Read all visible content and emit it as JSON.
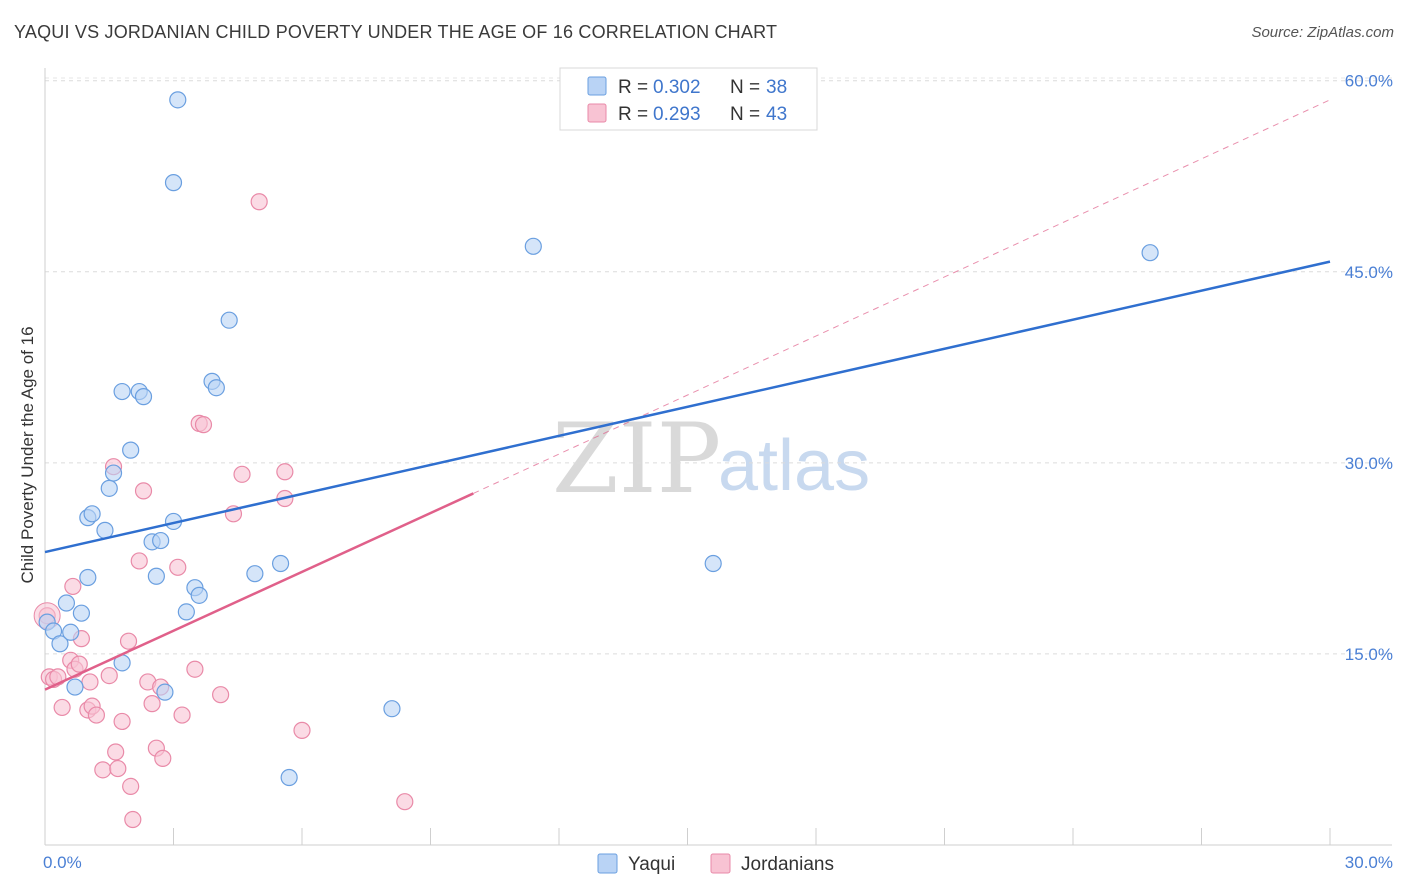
{
  "title": "YAQUI VS JORDANIAN CHILD POVERTY UNDER THE AGE OF 16 CORRELATION CHART",
  "source": "Source: ZipAtlas.com",
  "watermark": {
    "zip": "ZIP",
    "atlas": "atlas"
  },
  "colors": {
    "yaqui_fill": "#b9d3f5",
    "yaqui_stroke": "#6a9fe0",
    "yaqui_line": "#2f6fcf",
    "jord_fill": "#f8c3d3",
    "jord_stroke": "#e98aa8",
    "jord_line": "#e0608a"
  },
  "legend": {
    "rows": [
      {
        "r_label": "R =",
        "r_value": "0.302",
        "n_label": "N =",
        "n_value": "38"
      },
      {
        "r_label": "R =",
        "r_value": "0.293",
        "n_label": "N =",
        "n_value": "43"
      }
    ]
  },
  "chart_data": {
    "type": "scatter",
    "title": "YAQUI VS JORDANIAN CHILD POVERTY UNDER THE AGE OF 16 CORRELATION CHART",
    "xlabel": "",
    "ylabel": "Child Poverty Under the Age of 16",
    "xlim": [
      0,
      30
    ],
    "ylim": [
      0,
      61
    ],
    "x_tick_labels": [
      "0.0%",
      "30.0%"
    ],
    "y_ticks": [
      15,
      30,
      45,
      60
    ],
    "y_tick_labels": [
      "15.0%",
      "30.0%",
      "45.0%",
      "60.0%"
    ],
    "series": [
      {
        "name": "Yaqui",
        "r": 0.302,
        "n": 38,
        "trend": {
          "x": [
            0,
            30
          ],
          "y": [
            23.0,
            45.8
          ],
          "style": "solid"
        },
        "points": [
          [
            0.05,
            17.5
          ],
          [
            0.2,
            16.8
          ],
          [
            0.35,
            15.8
          ],
          [
            0.5,
            19.0
          ],
          [
            0.6,
            16.7
          ],
          [
            0.7,
            12.4
          ],
          [
            0.85,
            18.2
          ],
          [
            1.0,
            21.0
          ],
          [
            1.0,
            25.7
          ],
          [
            1.1,
            26.0
          ],
          [
            1.4,
            24.7
          ],
          [
            1.5,
            28.0
          ],
          [
            1.6,
            29.2
          ],
          [
            1.8,
            35.6
          ],
          [
            1.8,
            14.3
          ],
          [
            2.0,
            31.0
          ],
          [
            2.2,
            35.6
          ],
          [
            2.3,
            35.2
          ],
          [
            2.5,
            23.8
          ],
          [
            2.6,
            21.1
          ],
          [
            2.7,
            23.9
          ],
          [
            2.8,
            12.0
          ],
          [
            3.0,
            52.0
          ],
          [
            3.0,
            25.4
          ],
          [
            3.1,
            58.5
          ],
          [
            3.3,
            18.3
          ],
          [
            3.5,
            20.2
          ],
          [
            3.6,
            19.6
          ],
          [
            3.9,
            36.4
          ],
          [
            4.0,
            35.9
          ],
          [
            4.3,
            41.2
          ],
          [
            4.9,
            21.3
          ],
          [
            5.5,
            22.1
          ],
          [
            5.7,
            5.3
          ],
          [
            8.1,
            10.7
          ],
          [
            11.4,
            47.0
          ],
          [
            15.6,
            22.1
          ],
          [
            25.8,
            46.5
          ]
        ]
      },
      {
        "name": "Jordanians",
        "r": 0.293,
        "n": 43,
        "trend": {
          "x": [
            0,
            10
          ],
          "y": [
            12.2,
            27.6
          ],
          "style": "solid",
          "extended": {
            "x": [
              10,
              30
            ],
            "y": [
              27.6,
              58.5
            ],
            "style": "dashed"
          }
        },
        "points": [
          [
            0.05,
            18.0
          ],
          [
            0.1,
            13.2
          ],
          [
            0.2,
            13.0
          ],
          [
            0.3,
            13.2
          ],
          [
            0.4,
            10.8
          ],
          [
            0.6,
            14.5
          ],
          [
            0.65,
            20.3
          ],
          [
            0.7,
            13.8
          ],
          [
            0.8,
            14.2
          ],
          [
            0.85,
            16.2
          ],
          [
            1.0,
            10.6
          ],
          [
            1.05,
            12.8
          ],
          [
            1.1,
            10.9
          ],
          [
            1.2,
            10.2
          ],
          [
            1.35,
            5.9
          ],
          [
            1.5,
            13.3
          ],
          [
            1.6,
            29.7
          ],
          [
            1.65,
            7.3
          ],
          [
            1.7,
            6.0
          ],
          [
            1.8,
            9.7
          ],
          [
            1.95,
            16.0
          ],
          [
            2.0,
            4.6
          ],
          [
            2.05,
            2.0
          ],
          [
            2.2,
            22.3
          ],
          [
            2.3,
            27.8
          ],
          [
            2.4,
            12.8
          ],
          [
            2.5,
            11.1
          ],
          [
            2.6,
            7.6
          ],
          [
            2.7,
            12.4
          ],
          [
            2.75,
            6.8
          ],
          [
            3.1,
            21.8
          ],
          [
            3.2,
            10.2
          ],
          [
            3.5,
            13.8
          ],
          [
            3.6,
            33.1
          ],
          [
            3.7,
            33.0
          ],
          [
            4.1,
            11.8
          ],
          [
            4.4,
            26.0
          ],
          [
            4.6,
            29.1
          ],
          [
            5.0,
            50.5
          ],
          [
            5.6,
            27.2
          ],
          [
            5.6,
            29.3
          ],
          [
            6.0,
            9.0
          ],
          [
            8.4,
            3.4
          ]
        ]
      }
    ],
    "legend": [
      "Yaqui",
      "Jordanians"
    ]
  }
}
